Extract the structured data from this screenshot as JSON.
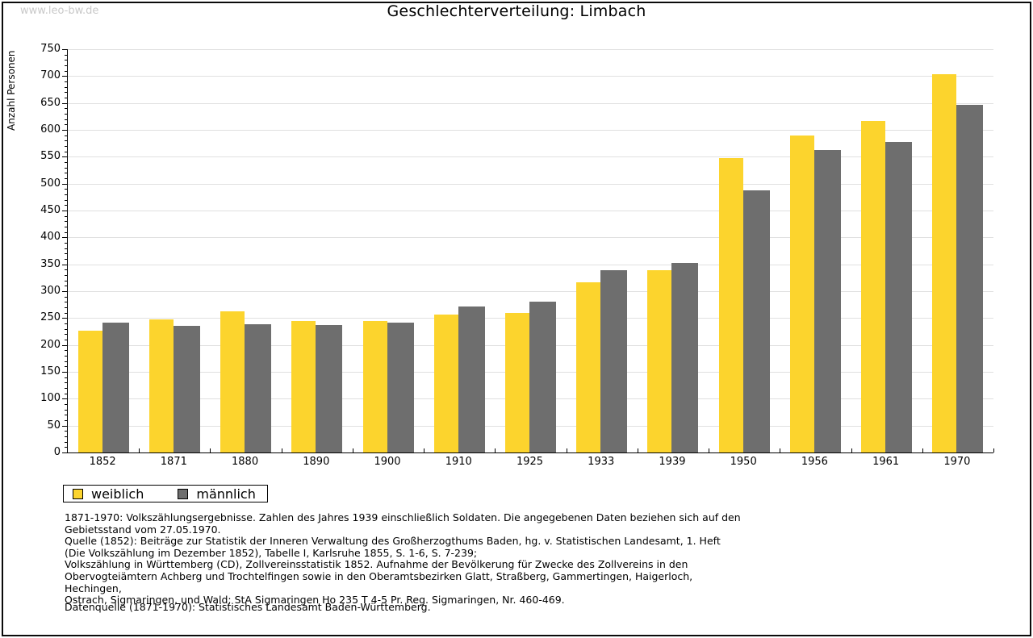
{
  "watermark": "www.leo-bw.de",
  "header": {
    "title": "Geschlechterverteilung: Limbach"
  },
  "chart_data": {
    "type": "bar",
    "title": "Geschlechterverteilung: Limbach",
    "xlabel": "",
    "ylabel": "Anzahl Personen",
    "ylim": [
      0,
      750
    ],
    "ytick_step": 50,
    "ytick_minor_step": 10,
    "grid": true,
    "legend_position": "bottom-left",
    "categories": [
      "1852",
      "1871",
      "1880",
      "1890",
      "1900",
      "1910",
      "1925",
      "1933",
      "1939",
      "1950",
      "1956",
      "1961",
      "1970"
    ],
    "series": [
      {
        "name": "weiblich",
        "color": "#FCD42D",
        "values": [
          226,
          247,
          263,
          245,
          245,
          256,
          259,
          316,
          339,
          547,
          589,
          617,
          704
        ]
      },
      {
        "name": "männlich",
        "color": "#6E6E6E",
        "values": [
          242,
          236,
          239,
          237,
          241,
          271,
          281,
          339,
          353,
          488,
          562,
          577,
          646
        ]
      }
    ]
  },
  "colors": {
    "gridline": "#e0e0e0",
    "axis": "#000000",
    "watermark": "#c9c9c9"
  },
  "notes": [
    "1871-1970: Volkszählungsergebnisse. Zahlen des Jahres 1939 einschließlich Soldaten. Die angegebenen Daten beziehen sich auf den",
    "Gebietsstand vom 27.05.1970.",
    "Quelle (1852): Beiträge zur Statistik der Inneren Verwaltung des Großherzogthums Baden, hg. v. Statistischen Landesamt, 1. Heft",
    "(Die Volkszählung im Dezember 1852), Tabelle I, Karlsruhe 1855, S. 1-6, S. 7-239;",
    "Volkszählung in Württemberg (CD), Zollvereinsstatistik 1852. Aufnahme der Bevölkerung für Zwecke des Zollvereins in den",
    "Obervogteiämtern Achberg und Trochtelfingen sowie in den Oberamtsbezirken Glatt, Straßberg, Gammertingen, Haigerloch, Hechingen,",
    "Ostrach, Sigmaringen, und Wald; StA Sigmaringen Ho 235 T 4-5 Pr. Reg. Sigmaringen, Nr. 460-469."
  ],
  "datenquelle": "Datenquelle (1871-1970): Statistisches Landesamt Baden-Württemberg."
}
